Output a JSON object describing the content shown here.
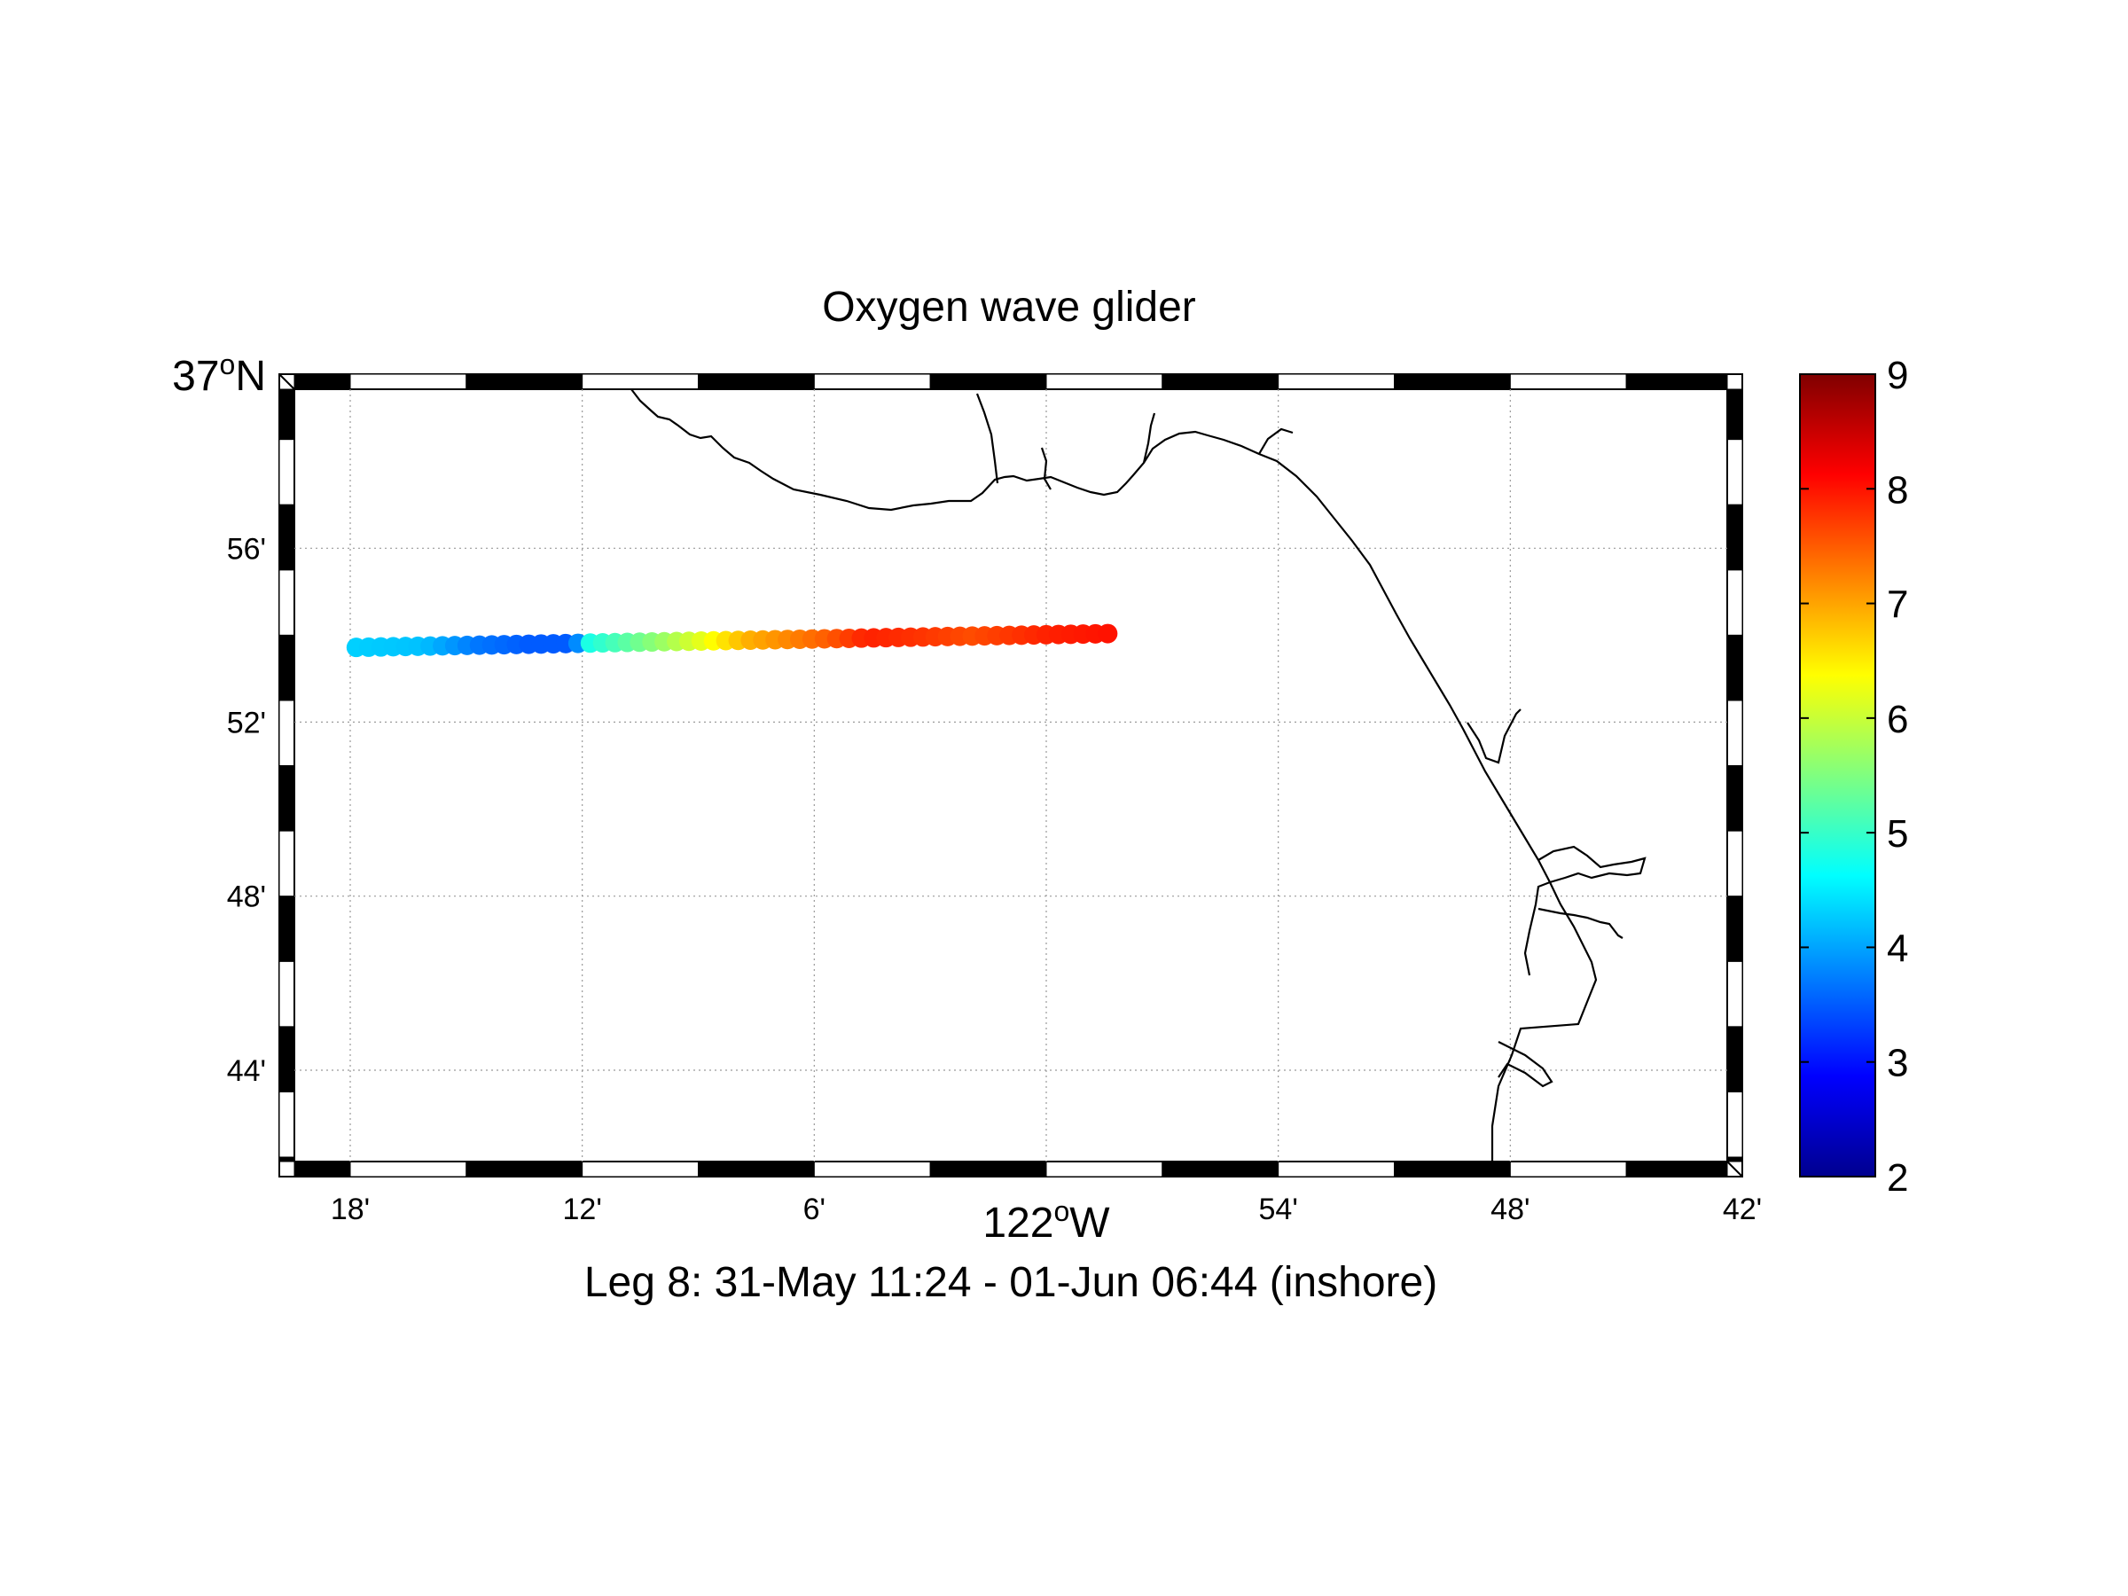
{
  "title": "Oxygen wave glider",
  "subtitle": "Leg 8: 31-May 11:24 - 01-Jun 06:44 (inshore)",
  "map": {
    "lon_range": [
      -122.3,
      -121.7
    ],
    "lat_range": [
      36.7,
      37.0
    ],
    "lat_corner_label": {
      "deg": "37",
      "sup": "o",
      "hemi": "N"
    },
    "lon_center_label": {
      "deg": "122",
      "sup": "o",
      "hemi": "W"
    },
    "lat_ticks": [
      {
        "value": 36.9333,
        "label": "56'"
      },
      {
        "value": 36.8667,
        "label": "52'"
      },
      {
        "value": 36.8,
        "label": "48'"
      },
      {
        "value": 36.7333,
        "label": "44'"
      }
    ],
    "lon_ticks": [
      {
        "value": -122.3,
        "label": "18'"
      },
      {
        "value": -122.2,
        "label": "12'"
      },
      {
        "value": -122.1,
        "label": "6'"
      },
      {
        "value": -121.9,
        "label": "54'"
      },
      {
        "value": -121.8,
        "label": "48'"
      },
      {
        "value": -121.7,
        "label": "42'"
      }
    ],
    "grid": true
  },
  "colorbar": {
    "min": 2,
    "max": 9,
    "ticks": [
      "2",
      "3",
      "4",
      "5",
      "6",
      "7",
      "8",
      "9"
    ],
    "colormap": "jet"
  },
  "chart_data": {
    "type": "scatter",
    "title": "Oxygen wave glider",
    "subtitle": "Leg 8: 31-May 11:24 - 01-Jun 06:44 (inshore)",
    "xlim": [
      -122.3,
      -121.7
    ],
    "ylim": [
      36.7,
      37.0
    ],
    "track": {
      "lon_start": -122.2974,
      "lon_end": -121.9735,
      "lat_start": 36.8953,
      "lat_end": 36.9006,
      "count": 62
    },
    "oxygen_profile": [
      [
        0.0,
        4.3
      ],
      [
        0.09,
        4.2
      ],
      [
        0.16,
        3.7
      ],
      [
        0.23,
        3.5
      ],
      [
        0.29,
        3.5
      ],
      [
        0.31,
        4.8
      ],
      [
        0.4,
        5.6
      ],
      [
        0.46,
        6.2
      ],
      [
        0.52,
        6.9
      ],
      [
        0.63,
        7.5
      ],
      [
        0.68,
        7.9
      ],
      [
        0.74,
        7.8
      ],
      [
        0.82,
        7.6
      ],
      [
        0.92,
        7.9
      ],
      [
        1.0,
        8.0
      ]
    ]
  }
}
